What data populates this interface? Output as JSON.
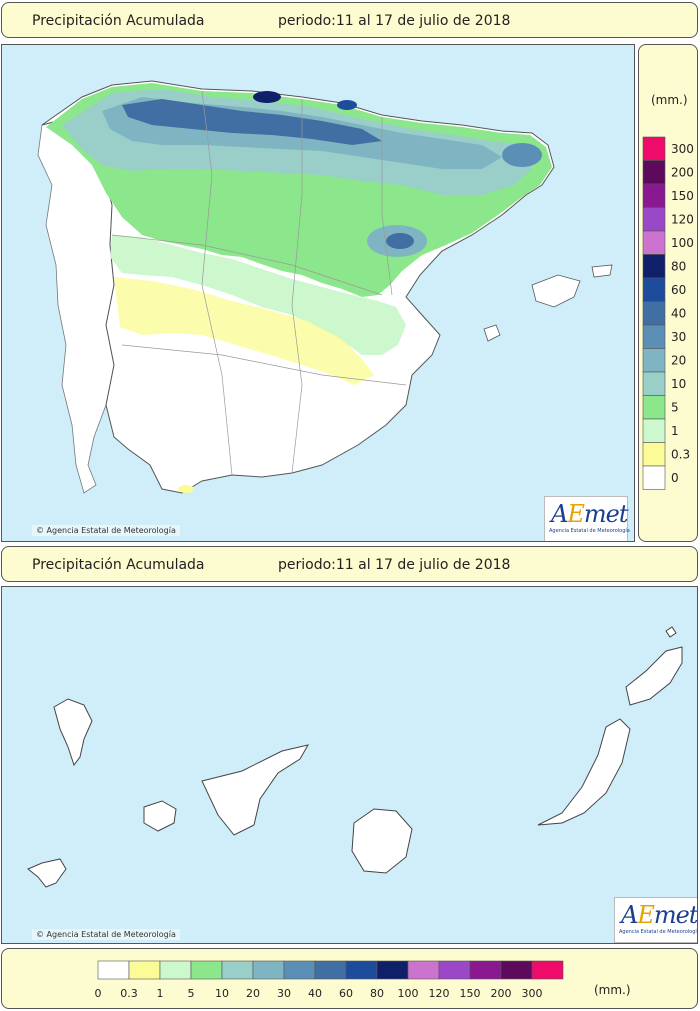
{
  "header_top": {
    "title": "Precipitación Acumulada",
    "period": "periodo:11 al 17 de julio de 2018"
  },
  "header_bottom": {
    "title": "Precipitación Acumulada",
    "period": "periodo:11 al 17 de julio de 2018"
  },
  "copyright": "Agencia Estatal de Meteorología",
  "logo": {
    "prefix": "A",
    "accent": "E",
    "suffix": "met",
    "subtitle": "Agencia Estatal de Meteorología"
  },
  "legend": {
    "unit": "(mm.)",
    "thresholds": [
      "0",
      "0.3",
      "1",
      "5",
      "10",
      "20",
      "30",
      "40",
      "60",
      "80",
      "100",
      "120",
      "150",
      "200",
      "300"
    ],
    "colors": [
      "#ffffff",
      "#fbfb98",
      "#cdf7cd",
      "#8ce68c",
      "#99cfc8",
      "#7fb5c2",
      "#5c8fb6",
      "#416ea3",
      "#1e4c9c",
      "#101f6a",
      "#cc73cf",
      "#9b48c8",
      "#8a1890",
      "#5e0a5c",
      "#ee0b6a"
    ]
  }
}
